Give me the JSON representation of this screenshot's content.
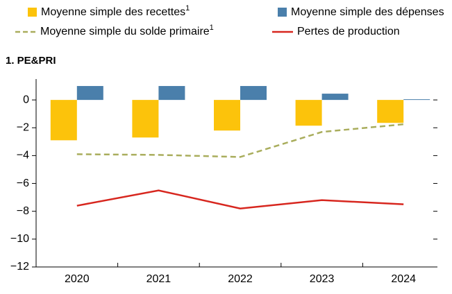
{
  "chart_data": {
    "type": "bar_line",
    "subtitle": "1. PE&PRI",
    "categories": [
      "2020",
      "2021",
      "2022",
      "2023",
      "2024"
    ],
    "series": [
      {
        "name": "Moyenne simple des recettes",
        "note": "1",
        "kind": "bar",
        "color": "#fcc30b",
        "values": [
          -2.9,
          -2.7,
          -2.2,
          -1.85,
          -1.65
        ]
      },
      {
        "name": "Moyenne simple des dépenses",
        "kind": "bar",
        "color": "#4a7fab",
        "values": [
          1.0,
          1.0,
          1.0,
          0.45,
          0.05
        ]
      },
      {
        "name": "Moyenne simple du solde primaire",
        "note": "1",
        "kind": "dashed-line",
        "color": "#a9ad5c",
        "values": [
          -3.9,
          -3.95,
          -4.1,
          -2.3,
          -1.75
        ]
      },
      {
        "name": "Pertes de production",
        "kind": "line",
        "color": "#d7261e",
        "values": [
          -7.6,
          -6.5,
          -7.8,
          -7.2,
          -7.5
        ]
      }
    ],
    "ylim": [
      -12,
      1.5
    ],
    "yticks": [
      0,
      {
        "value": -2,
        "label": "−2"
      },
      {
        "value": -4,
        "label": "−4"
      },
      {
        "value": -6,
        "label": "−6"
      },
      {
        "value": -8,
        "label": "−8"
      },
      {
        "value": -10,
        "label": "−10"
      },
      {
        "value": -12,
        "label": "−12"
      }
    ]
  }
}
